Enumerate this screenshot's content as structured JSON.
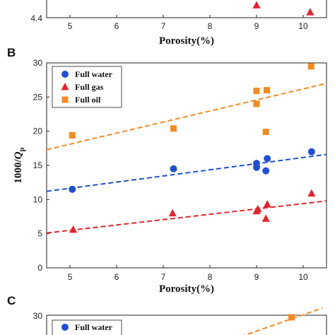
{
  "chart_data": [
    {
      "panel": "A",
      "type": "scatter",
      "xlabel": "Porosity(%)",
      "ylabel": "",
      "xlim": [
        4.5,
        10.5
      ],
      "xticks": [
        5,
        6,
        7,
        8,
        9,
        10
      ],
      "yticks_visible": [
        "4.4"
      ],
      "series": [
        {
          "name": "Full gas",
          "color": "#e8222a",
          "marker": "triangle",
          "x": [
            9.0,
            10.15
          ],
          "y": [
            4.56,
            4.47
          ]
        }
      ]
    },
    {
      "panel": "B",
      "type": "scatter",
      "xlabel": "Porosity(%)",
      "ylabel_main": "1000/",
      "ylabel_italic": "Q",
      "ylabel_sub": "p",
      "xlim": [
        4.5,
        10.5
      ],
      "ylim": [
        0,
        30
      ],
      "xticks": [
        5,
        6,
        7,
        8,
        9,
        10
      ],
      "yticks": [
        0,
        5,
        10,
        15,
        20,
        25,
        30
      ],
      "legend_position": "top-left",
      "series": [
        {
          "name": "Full water",
          "color": "#1f4fd6",
          "marker": "circle",
          "x": [
            5.05,
            7.22,
            9.0,
            9.0,
            9.2,
            9.23,
            10.18
          ],
          "y": [
            11.5,
            14.5,
            14.7,
            15.3,
            14.2,
            16.0,
            17.0
          ],
          "fit": [
            [
              4.5,
              11.2
            ],
            [
              10.5,
              16.6
            ]
          ]
        },
        {
          "name": "Full gas",
          "color": "#e8222a",
          "marker": "triangle",
          "x": [
            5.07,
            7.2,
            9.0,
            9.03,
            9.2,
            9.23,
            10.18
          ],
          "y": [
            5.6,
            8.0,
            8.3,
            8.6,
            7.2,
            9.3,
            10.9
          ],
          "fit": [
            [
              4.5,
              5.1
            ],
            [
              10.5,
              9.8
            ]
          ]
        },
        {
          "name": "Full oil",
          "color": "#f58a1f",
          "marker": "square",
          "x": [
            5.05,
            7.22,
            9.0,
            9.0,
            9.2,
            9.22,
            10.17
          ],
          "y": [
            19.4,
            20.4,
            24.0,
            25.9,
            19.9,
            26.0,
            29.5
          ],
          "fit": [
            [
              4.5,
              17.3
            ],
            [
              10.5,
              27.0
            ]
          ]
        }
      ]
    },
    {
      "panel": "C",
      "type": "scatter",
      "yticks_visible": [
        "30"
      ],
      "legend_position": "top-left",
      "series": [
        {
          "name": "Full water",
          "color": "#1f4fd6",
          "marker": "circle"
        },
        {
          "name": "Full oil",
          "color": "#f58a1f",
          "marker": "square",
          "x": [
            9.75
          ],
          "y": [
            29.0
          ]
        }
      ]
    }
  ]
}
